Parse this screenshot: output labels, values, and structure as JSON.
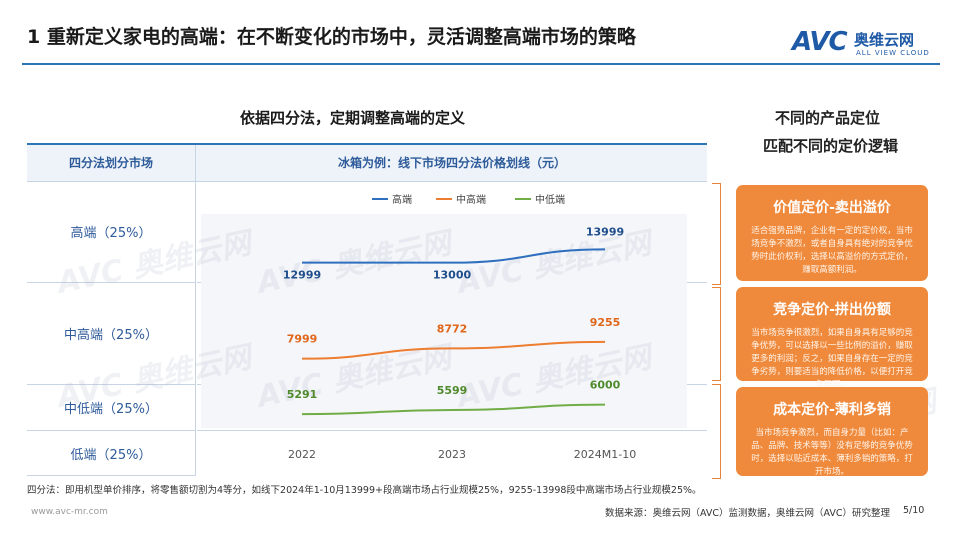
{
  "header": {
    "title": "1 重新定义家电的高端：在不断变化的市场中，灵活调整高端市场的策略",
    "logo": {
      "mark": "AVC",
      "cn": "奥维云网",
      "en": "ALL VIEW CLOUD"
    }
  },
  "left": {
    "section_title": "依据四分法，定期调整高端的定义",
    "table_header_left": "四分法划分市场",
    "segments": [
      "高端（25%）",
      "中高端（25%）",
      "中低端（25%）",
      "低端（25%）"
    ]
  },
  "right": {
    "title_line1": "不同的产品定位",
    "title_line2": "匹配不同的定价逻辑",
    "cards": [
      {
        "title": "价值定价-卖出溢价",
        "desc": "适合强势品牌，企业有一定的定价权，当市场竞争不激烈，或者自身具有绝对的竞争优势时此价权利，选择以高溢价的方式定价，赚取高额利润。"
      },
      {
        "title": "竞争定价-拼出份额",
        "desc": "当市场竞争很激烈，如果自身具有足够的竞争优势，可以选择以一些比例的溢价，赚取更多的利润；反之，如果自身存在一定的竞争劣势，则要适当的降低价格，以便打开竞争局面。"
      },
      {
        "title": "成本定价-薄利多销",
        "desc": "当市场竞争激烈，而自身力量（比如：产品、品牌、技术等等）没有足够的竞争优势时，选择以贴近成本、薄利多销的策略，打开市场。"
      }
    ]
  },
  "chart_data": {
    "type": "line",
    "title": "冰箱为例：线下市场四分法价格划线（元）",
    "categories": [
      "2022",
      "2023",
      "2024M1-10"
    ],
    "series": [
      {
        "name": "高端",
        "values": [
          12999,
          13000,
          13999
        ],
        "color": "#2e6fbf"
      },
      {
        "name": "中高端",
        "values": [
          7999,
          8772,
          9255
        ],
        "color": "#ed7d31"
      },
      {
        "name": "中低端",
        "values": [
          5291,
          5599,
          6000
        ],
        "color": "#70ad47"
      }
    ],
    "legend_position": "top"
  },
  "footer": {
    "footnote": "四分法：即用机型单价排序，将零售额切割为4等分，如线下2024年1-10月13999+段高端市场占行业规模25%，9255-13998段中高端市场占行业规模25%。",
    "website": "www.avc-mr.com",
    "source": "数据来源：奥维云网（AVC）监测数据，奥维云网（AVC）研究整理",
    "page": "5/10"
  },
  "colors": {
    "accent_blue": "#2e75b6",
    "card_orange": "#ef8a3c",
    "segment_text": "#2e5b9a"
  }
}
